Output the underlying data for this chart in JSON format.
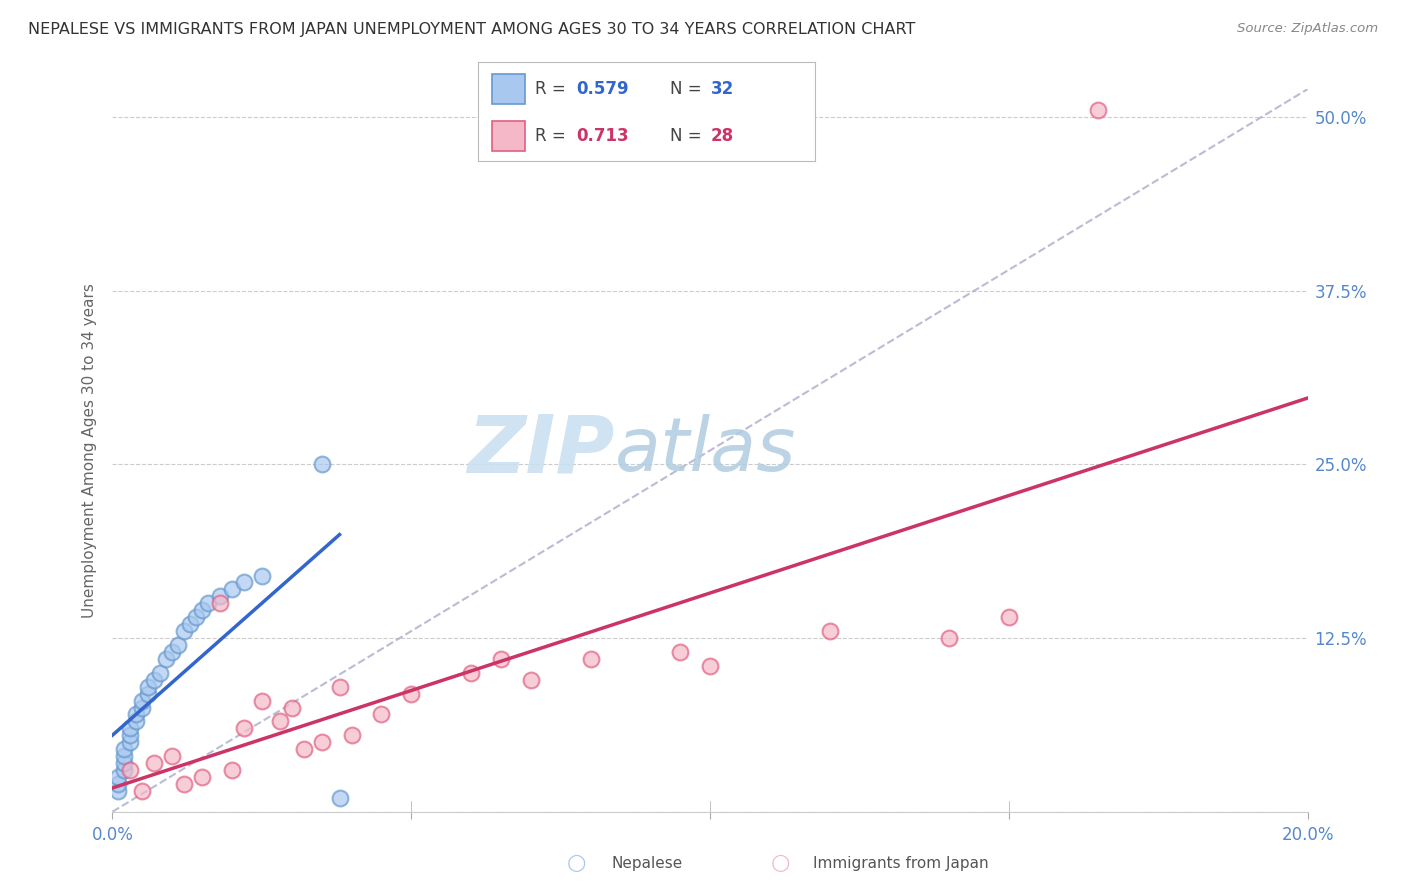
{
  "title": "NEPALESE VS IMMIGRANTS FROM JAPAN UNEMPLOYMENT AMONG AGES 30 TO 34 YEARS CORRELATION CHART",
  "source": "Source: ZipAtlas.com",
  "ylabel": "Unemployment Among Ages 30 to 34 years",
  "xlim": [
    0.0,
    0.2
  ],
  "ylim": [
    0.0,
    0.52
  ],
  "xticks": [
    0.0,
    0.05,
    0.1,
    0.15,
    0.2
  ],
  "xtick_labels": [
    "0.0%",
    "",
    "",
    "",
    "20.0%"
  ],
  "yticks": [
    0.0,
    0.125,
    0.25,
    0.375,
    0.5
  ],
  "ytick_labels": [
    "",
    "12.5%",
    "25.0%",
    "37.5%",
    "50.0%"
  ],
  "nepalese_R": "0.579",
  "nepalese_N": "32",
  "japan_R": "0.713",
  "japan_N": "28",
  "nepalese_x": [
    0.001,
    0.001,
    0.001,
    0.002,
    0.002,
    0.002,
    0.002,
    0.003,
    0.003,
    0.003,
    0.004,
    0.004,
    0.005,
    0.005,
    0.006,
    0.006,
    0.007,
    0.008,
    0.009,
    0.01,
    0.011,
    0.012,
    0.013,
    0.014,
    0.015,
    0.016,
    0.018,
    0.02,
    0.022,
    0.025,
    0.035,
    0.038
  ],
  "nepalese_y": [
    0.015,
    0.02,
    0.025,
    0.03,
    0.035,
    0.04,
    0.045,
    0.05,
    0.055,
    0.06,
    0.065,
    0.07,
    0.075,
    0.08,
    0.085,
    0.09,
    0.095,
    0.1,
    0.11,
    0.115,
    0.12,
    0.13,
    0.135,
    0.14,
    0.145,
    0.15,
    0.155,
    0.16,
    0.165,
    0.17,
    0.25,
    0.01
  ],
  "japan_x": [
    0.003,
    0.005,
    0.007,
    0.01,
    0.012,
    0.015,
    0.018,
    0.02,
    0.022,
    0.025,
    0.028,
    0.03,
    0.032,
    0.035,
    0.038,
    0.04,
    0.045,
    0.05,
    0.06,
    0.065,
    0.07,
    0.08,
    0.095,
    0.1,
    0.12,
    0.14,
    0.15,
    0.165
  ],
  "japan_y": [
    0.03,
    0.015,
    0.035,
    0.04,
    0.02,
    0.025,
    0.15,
    0.03,
    0.06,
    0.08,
    0.065,
    0.075,
    0.045,
    0.05,
    0.09,
    0.055,
    0.07,
    0.085,
    0.1,
    0.11,
    0.095,
    0.11,
    0.115,
    0.105,
    0.13,
    0.125,
    0.14,
    0.505
  ],
  "blue_scatter_color": "#a8c8f0",
  "blue_scatter_edge": "#6699cc",
  "pink_scatter_color": "#f5b8c8",
  "pink_scatter_edge": "#e06080",
  "blue_line_color": "#3366cc",
  "pink_line_color": "#cc3366",
  "diagonal_color": "#aaaacc",
  "background_color": "#ffffff",
  "watermark_zip_color": "#cce0f5",
  "watermark_atlas_color": "#b0c8e8",
  "grid_color": "#cccccc",
  "tick_color": "#5588cc",
  "ylabel_color": "#666666",
  "title_color": "#333333",
  "source_color": "#888888"
}
